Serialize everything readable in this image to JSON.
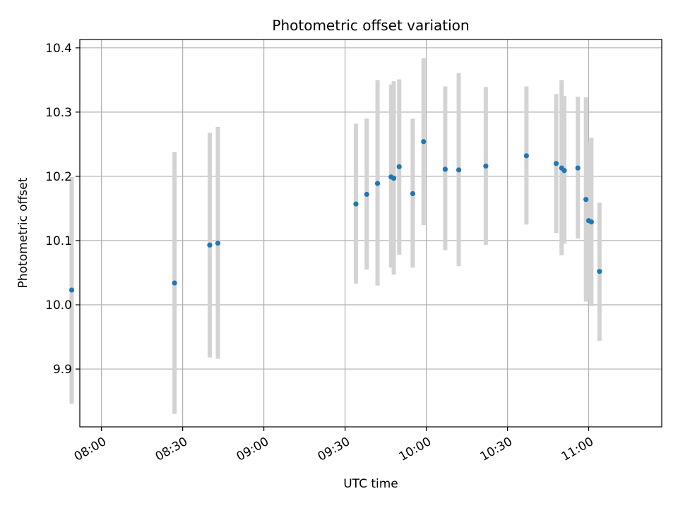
{
  "chart_data": {
    "type": "scatter",
    "title": "Photometric offset variation",
    "xlabel": "UTC time",
    "ylabel": "Photometric offset",
    "x_tick_labels": [
      "08:00",
      "08:30",
      "09:00",
      "09:30",
      "10:00",
      "10:30",
      "11:00"
    ],
    "y_tick_labels": [
      "9.9",
      "10.0",
      "10.1",
      "10.2",
      "10.3",
      "10.4"
    ],
    "y_ticks": [
      9.9,
      10.0,
      10.1,
      10.2,
      10.3,
      10.4
    ],
    "xlim": [
      "07:52",
      "11:27"
    ],
    "ylim": [
      9.81,
      10.413
    ],
    "grid": true,
    "point_color": "#1f77b4",
    "errorbar_color": "#d3d3d3",
    "points": [
      {
        "x": "07:49",
        "y": 10.023,
        "yerr_low": 9.846,
        "yerr_high": 10.199
      },
      {
        "x": "08:27",
        "y": 10.034,
        "yerr_low": 9.83,
        "yerr_high": 10.238
      },
      {
        "x": "08:40",
        "y": 10.093,
        "yerr_low": 9.918,
        "yerr_high": 10.268
      },
      {
        "x": "08:43",
        "y": 10.096,
        "yerr_low": 9.916,
        "yerr_high": 10.277
      },
      {
        "x": "09:34",
        "y": 10.157,
        "yerr_low": 10.033,
        "yerr_high": 10.282
      },
      {
        "x": "09:38",
        "y": 10.172,
        "yerr_low": 10.055,
        "yerr_high": 10.29
      },
      {
        "x": "09:42",
        "y": 10.189,
        "yerr_low": 10.03,
        "yerr_high": 10.35
      },
      {
        "x": "09:47",
        "y": 10.199,
        "yerr_low": 10.058,
        "yerr_high": 10.343
      },
      {
        "x": "09:48",
        "y": 10.197,
        "yerr_low": 10.047,
        "yerr_high": 10.348
      },
      {
        "x": "09:50",
        "y": 10.215,
        "yerr_low": 10.078,
        "yerr_high": 10.351
      },
      {
        "x": "09:55",
        "y": 10.173,
        "yerr_low": 10.058,
        "yerr_high": 10.29
      },
      {
        "x": "09:59",
        "y": 10.254,
        "yerr_low": 10.124,
        "yerr_high": 10.384
      },
      {
        "x": "10:07",
        "y": 10.211,
        "yerr_low": 10.085,
        "yerr_high": 10.34
      },
      {
        "x": "10:12",
        "y": 10.21,
        "yerr_low": 10.06,
        "yerr_high": 10.361
      },
      {
        "x": "10:22",
        "y": 10.216,
        "yerr_low": 10.093,
        "yerr_high": 10.339
      },
      {
        "x": "10:37",
        "y": 10.232,
        "yerr_low": 10.125,
        "yerr_high": 10.34
      },
      {
        "x": "10:48",
        "y": 10.22,
        "yerr_low": 10.112,
        "yerr_high": 10.328
      },
      {
        "x": "10:50",
        "y": 10.213,
        "yerr_low": 10.077,
        "yerr_high": 10.35
      },
      {
        "x": "10:51",
        "y": 10.209,
        "yerr_low": 10.095,
        "yerr_high": 10.325
      },
      {
        "x": "10:56",
        "y": 10.213,
        "yerr_low": 10.103,
        "yerr_high": 10.324
      },
      {
        "x": "10:59",
        "y": 10.164,
        "yerr_low": 10.005,
        "yerr_high": 10.323
      },
      {
        "x": "11:00",
        "y": 10.131,
        "yerr_low": 10.008,
        "yerr_high": 10.253
      },
      {
        "x": "11:01",
        "y": 10.129,
        "yerr_low": 9.998,
        "yerr_high": 10.26
      },
      {
        "x": "11:04",
        "y": 10.052,
        "yerr_low": 9.944,
        "yerr_high": 10.159
      }
    ]
  }
}
